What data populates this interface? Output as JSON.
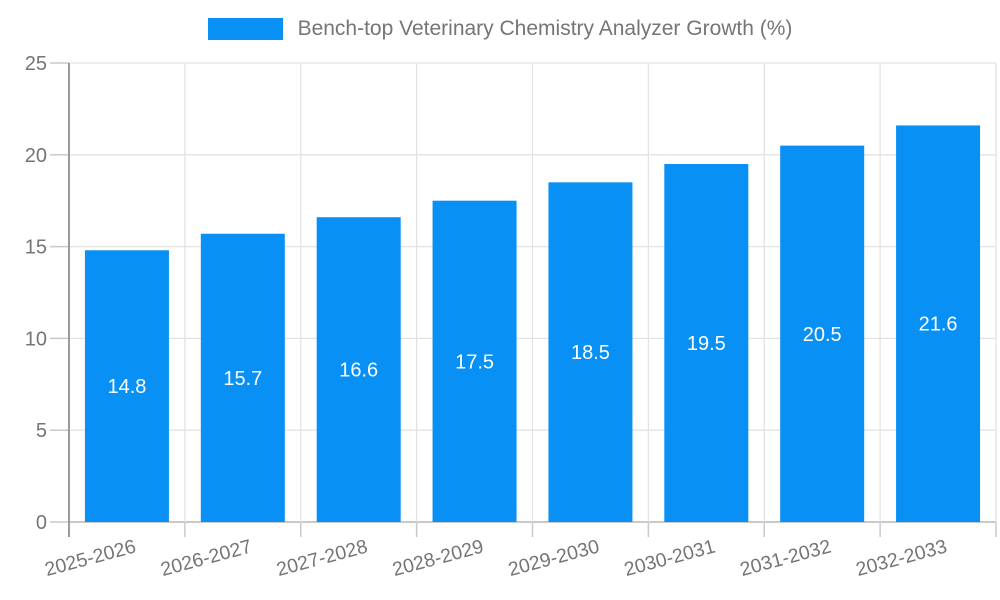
{
  "legend": {
    "label": "Bench-top Veterinary Chemistry Analyzer Growth (%)"
  },
  "chart_data": {
    "type": "bar",
    "title": "Bench-top Veterinary Chemistry Analyzer Growth (%)",
    "categories": [
      "2025-2026",
      "2026-2027",
      "2027-2028",
      "2028-2029",
      "2029-2030",
      "2030-2031",
      "2031-2032",
      "2032-2033"
    ],
    "values": [
      14.8,
      15.7,
      16.6,
      17.5,
      18.5,
      19.5,
      20.5,
      21.6
    ],
    "value_labels": [
      "14.8",
      "15.7",
      "16.6",
      "17.5",
      "18.5",
      "19.5",
      "20.5",
      "21.6"
    ],
    "xlabel": "",
    "ylabel": "",
    "ylim": [
      0,
      25
    ],
    "yticks": [
      0,
      5,
      10,
      15,
      20,
      25
    ],
    "grid": "on",
    "legend_position": "top-center",
    "colors": {
      "bar": "#0890f5",
      "value_label": "#ffffff",
      "axis_text": "#757575",
      "grid_line": "#e3e3e3",
      "y_axis_line": "#9a9a9a",
      "x_axis_line": "#c9c9c9",
      "tick": "#c9c9c9"
    }
  }
}
